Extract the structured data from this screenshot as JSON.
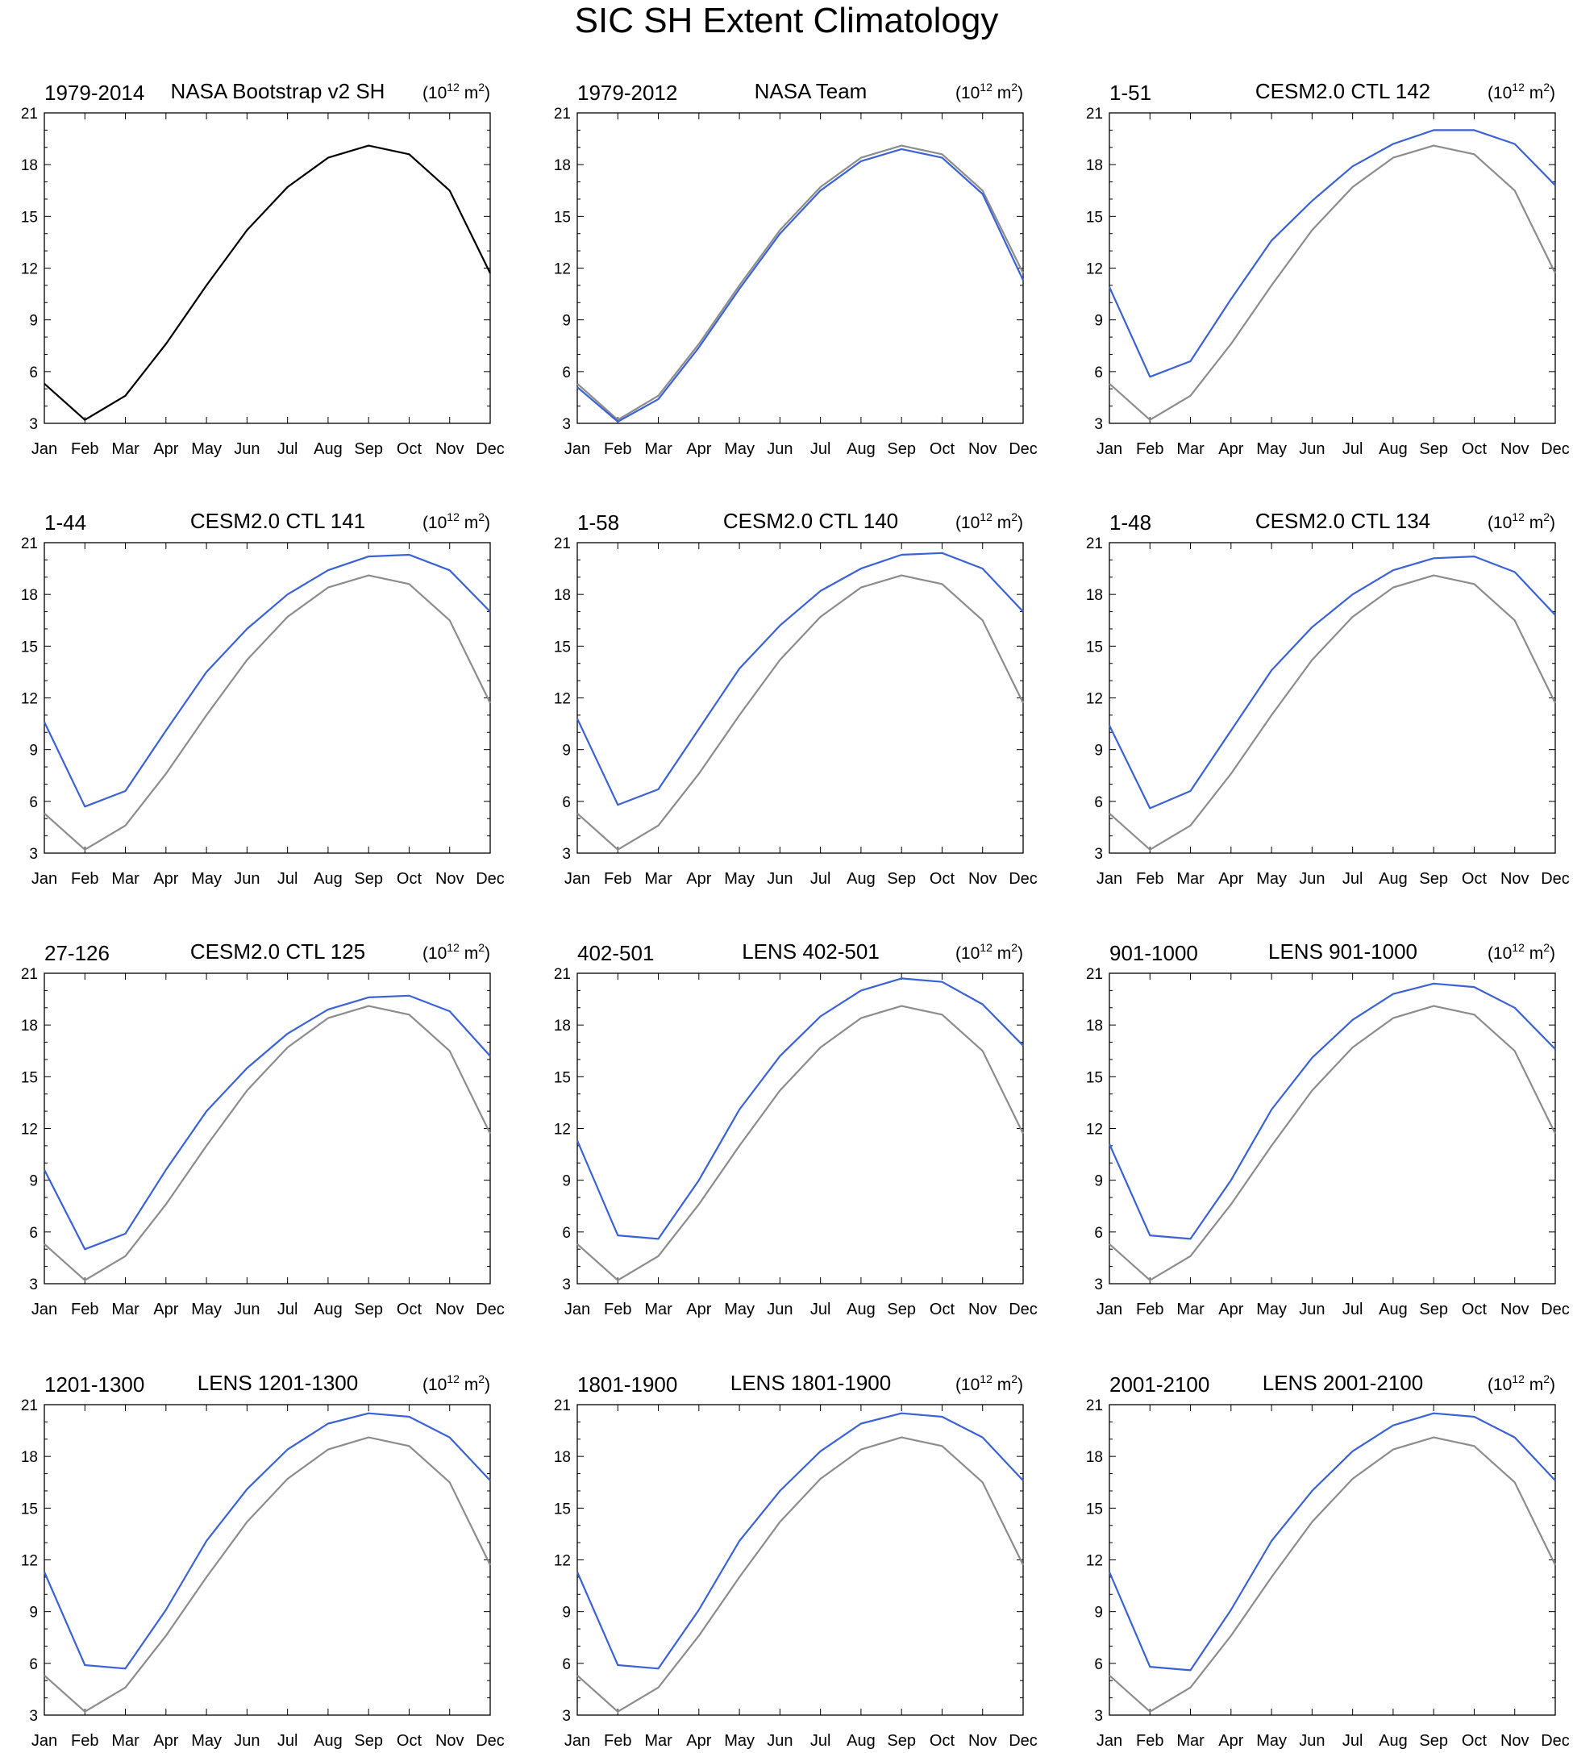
{
  "title": "SIC SH Extent Climatology",
  "unit_label": {
    "base": "(10",
    "exp": "12",
    "mid": " m",
    "exp2": "2",
    "end": ")"
  },
  "colors": {
    "observation": "#8c8c8c",
    "model": "#3a62d4",
    "reference_black": "#000000"
  },
  "chart_data": [
    {
      "type": "line",
      "left_label": "1979-2014",
      "center_label": "NASA Bootstrap v2 SH",
      "categories": [
        "Jan",
        "Feb",
        "Mar",
        "Apr",
        "May",
        "Jun",
        "Jul",
        "Aug",
        "Sep",
        "Oct",
        "Nov",
        "Dec"
      ],
      "ylim": [
        3,
        21
      ],
      "yticks": [
        3,
        6,
        9,
        12,
        15,
        18,
        21
      ],
      "series": [
        {
          "color": "#000000",
          "values": [
            5.3,
            3.2,
            4.6,
            7.6,
            11.0,
            14.2,
            16.7,
            18.4,
            19.1,
            18.6,
            16.5,
            11.7
          ]
        }
      ]
    },
    {
      "type": "line",
      "left_label": "1979-2012",
      "center_label": "NASA Team",
      "categories": [
        "Jan",
        "Feb",
        "Mar",
        "Apr",
        "May",
        "Jun",
        "Jul",
        "Aug",
        "Sep",
        "Oct",
        "Nov",
        "Dec"
      ],
      "ylim": [
        3,
        21
      ],
      "yticks": [
        3,
        6,
        9,
        12,
        15,
        18,
        21
      ],
      "series": [
        {
          "color": "#8c8c8c",
          "values": [
            5.3,
            3.2,
            4.6,
            7.6,
            11.0,
            14.2,
            16.7,
            18.4,
            19.1,
            18.6,
            16.5,
            11.7
          ]
        },
        {
          "color": "#3a62d4",
          "values": [
            5.1,
            3.1,
            4.4,
            7.4,
            10.8,
            14.0,
            16.5,
            18.2,
            18.9,
            18.4,
            16.3,
            11.3
          ]
        }
      ]
    },
    {
      "type": "line",
      "left_label": "1-51",
      "center_label": "CESM2.0 CTL 142",
      "categories": [
        "Jan",
        "Feb",
        "Mar",
        "Apr",
        "May",
        "Jun",
        "Jul",
        "Aug",
        "Sep",
        "Oct",
        "Nov",
        "Dec"
      ],
      "ylim": [
        3,
        21
      ],
      "yticks": [
        3,
        6,
        9,
        12,
        15,
        18,
        21
      ],
      "series": [
        {
          "color": "#8c8c8c",
          "values": [
            5.3,
            3.2,
            4.6,
            7.6,
            11.0,
            14.2,
            16.7,
            18.4,
            19.1,
            18.6,
            16.5,
            11.7
          ]
        },
        {
          "color": "#3a62d4",
          "values": [
            10.9,
            5.7,
            6.6,
            10.2,
            13.6,
            15.9,
            17.9,
            19.2,
            20.0,
            20.0,
            19.2,
            16.8
          ]
        }
      ]
    },
    {
      "type": "line",
      "left_label": "1-44",
      "center_label": "CESM2.0 CTL 141",
      "categories": [
        "Jan",
        "Feb",
        "Mar",
        "Apr",
        "May",
        "Jun",
        "Jul",
        "Aug",
        "Sep",
        "Oct",
        "Nov",
        "Dec"
      ],
      "ylim": [
        3,
        21
      ],
      "yticks": [
        3,
        6,
        9,
        12,
        15,
        18,
        21
      ],
      "series": [
        {
          "color": "#8c8c8c",
          "values": [
            5.3,
            3.2,
            4.6,
            7.6,
            11.0,
            14.2,
            16.7,
            18.4,
            19.1,
            18.6,
            16.5,
            11.7
          ]
        },
        {
          "color": "#3a62d4",
          "values": [
            10.6,
            5.7,
            6.6,
            10.1,
            13.5,
            16.0,
            18.0,
            19.4,
            20.2,
            20.3,
            19.4,
            17.0
          ]
        }
      ]
    },
    {
      "type": "line",
      "left_label": "1-58",
      "center_label": "CESM2.0 CTL 140",
      "categories": [
        "Jan",
        "Feb",
        "Mar",
        "Apr",
        "May",
        "Jun",
        "Jul",
        "Aug",
        "Sep",
        "Oct",
        "Nov",
        "Dec"
      ],
      "ylim": [
        3,
        21
      ],
      "yticks": [
        3,
        6,
        9,
        12,
        15,
        18,
        21
      ],
      "series": [
        {
          "color": "#8c8c8c",
          "values": [
            5.3,
            3.2,
            4.6,
            7.6,
            11.0,
            14.2,
            16.7,
            18.4,
            19.1,
            18.6,
            16.5,
            11.7
          ]
        },
        {
          "color": "#3a62d4",
          "values": [
            10.8,
            5.8,
            6.7,
            10.2,
            13.7,
            16.2,
            18.2,
            19.5,
            20.3,
            20.4,
            19.5,
            17.0
          ]
        }
      ]
    },
    {
      "type": "line",
      "left_label": "1-48",
      "center_label": "CESM2.0 CTL 134",
      "categories": [
        "Jan",
        "Feb",
        "Mar",
        "Apr",
        "May",
        "Jun",
        "Jul",
        "Aug",
        "Sep",
        "Oct",
        "Nov",
        "Dec"
      ],
      "ylim": [
        3,
        21
      ],
      "yticks": [
        3,
        6,
        9,
        12,
        15,
        18,
        21
      ],
      "series": [
        {
          "color": "#8c8c8c",
          "values": [
            5.3,
            3.2,
            4.6,
            7.6,
            11.0,
            14.2,
            16.7,
            18.4,
            19.1,
            18.6,
            16.5,
            11.7
          ]
        },
        {
          "color": "#3a62d4",
          "values": [
            10.4,
            5.6,
            6.6,
            10.1,
            13.6,
            16.1,
            18.0,
            19.4,
            20.1,
            20.2,
            19.3,
            16.8
          ]
        }
      ]
    },
    {
      "type": "line",
      "left_label": "27-126",
      "center_label": "CESM2.0 CTL 125",
      "categories": [
        "Jan",
        "Feb",
        "Mar",
        "Apr",
        "May",
        "Jun",
        "Jul",
        "Aug",
        "Sep",
        "Oct",
        "Nov",
        "Dec"
      ],
      "ylim": [
        3,
        21
      ],
      "yticks": [
        3,
        6,
        9,
        12,
        15,
        18,
        21
      ],
      "series": [
        {
          "color": "#8c8c8c",
          "values": [
            5.3,
            3.2,
            4.6,
            7.6,
            11.0,
            14.2,
            16.7,
            18.4,
            19.1,
            18.6,
            16.5,
            11.7
          ]
        },
        {
          "color": "#3a62d4",
          "values": [
            9.6,
            5.0,
            5.9,
            9.6,
            13.0,
            15.5,
            17.5,
            18.9,
            19.6,
            19.7,
            18.8,
            16.2
          ]
        }
      ]
    },
    {
      "type": "line",
      "left_label": "402-501",
      "center_label": "LENS 402-501",
      "categories": [
        "Jan",
        "Feb",
        "Mar",
        "Apr",
        "May",
        "Jun",
        "Jul",
        "Aug",
        "Sep",
        "Oct",
        "Nov",
        "Dec"
      ],
      "ylim": [
        3,
        21
      ],
      "yticks": [
        3,
        6,
        9,
        12,
        15,
        18,
        21
      ],
      "series": [
        {
          "color": "#8c8c8c",
          "values": [
            5.3,
            3.2,
            4.6,
            7.6,
            11.0,
            14.2,
            16.7,
            18.4,
            19.1,
            18.6,
            16.5,
            11.7
          ]
        },
        {
          "color": "#3a62d4",
          "values": [
            11.3,
            5.8,
            5.6,
            9.0,
            13.1,
            16.2,
            18.5,
            20.0,
            20.7,
            20.5,
            19.2,
            16.8
          ]
        }
      ]
    },
    {
      "type": "line",
      "left_label": "901-1000",
      "center_label": "LENS 901-1000",
      "categories": [
        "Jan",
        "Feb",
        "Mar",
        "Apr",
        "May",
        "Jun",
        "Jul",
        "Aug",
        "Sep",
        "Oct",
        "Nov",
        "Dec"
      ],
      "ylim": [
        3,
        21
      ],
      "yticks": [
        3,
        6,
        9,
        12,
        15,
        18,
        21
      ],
      "series": [
        {
          "color": "#8c8c8c",
          "values": [
            5.3,
            3.2,
            4.6,
            7.6,
            11.0,
            14.2,
            16.7,
            18.4,
            19.1,
            18.6,
            16.5,
            11.7
          ]
        },
        {
          "color": "#3a62d4",
          "values": [
            11.1,
            5.8,
            5.6,
            9.0,
            13.1,
            16.1,
            18.3,
            19.8,
            20.4,
            20.2,
            19.0,
            16.6
          ]
        }
      ]
    },
    {
      "type": "line",
      "left_label": "1201-1300",
      "center_label": "LENS 1201-1300",
      "categories": [
        "Jan",
        "Feb",
        "Mar",
        "Apr",
        "May",
        "Jun",
        "Jul",
        "Aug",
        "Sep",
        "Oct",
        "Nov",
        "Dec"
      ],
      "ylim": [
        3,
        21
      ],
      "yticks": [
        3,
        6,
        9,
        12,
        15,
        18,
        21
      ],
      "series": [
        {
          "color": "#8c8c8c",
          "values": [
            5.3,
            3.2,
            4.6,
            7.6,
            11.0,
            14.2,
            16.7,
            18.4,
            19.1,
            18.6,
            16.5,
            11.7
          ]
        },
        {
          "color": "#3a62d4",
          "values": [
            11.3,
            5.9,
            5.7,
            9.1,
            13.1,
            16.1,
            18.4,
            19.9,
            20.5,
            20.3,
            19.1,
            16.6
          ]
        }
      ]
    },
    {
      "type": "line",
      "left_label": "1801-1900",
      "center_label": "LENS 1801-1900",
      "categories": [
        "Jan",
        "Feb",
        "Mar",
        "Apr",
        "May",
        "Jun",
        "Jul",
        "Aug",
        "Sep",
        "Oct",
        "Nov",
        "Dec"
      ],
      "ylim": [
        3,
        21
      ],
      "yticks": [
        3,
        6,
        9,
        12,
        15,
        18,
        21
      ],
      "series": [
        {
          "color": "#8c8c8c",
          "values": [
            5.3,
            3.2,
            4.6,
            7.6,
            11.0,
            14.2,
            16.7,
            18.4,
            19.1,
            18.6,
            16.5,
            11.7
          ]
        },
        {
          "color": "#3a62d4",
          "values": [
            11.3,
            5.9,
            5.7,
            9.1,
            13.1,
            16.0,
            18.3,
            19.9,
            20.5,
            20.3,
            19.1,
            16.6
          ]
        }
      ]
    },
    {
      "type": "line",
      "left_label": "2001-2100",
      "center_label": "LENS 2001-2100",
      "categories": [
        "Jan",
        "Feb",
        "Mar",
        "Apr",
        "May",
        "Jun",
        "Jul",
        "Aug",
        "Sep",
        "Oct",
        "Nov",
        "Dec"
      ],
      "ylim": [
        3,
        21
      ],
      "yticks": [
        3,
        6,
        9,
        12,
        15,
        18,
        21
      ],
      "series": [
        {
          "color": "#8c8c8c",
          "values": [
            5.3,
            3.2,
            4.6,
            7.6,
            11.0,
            14.2,
            16.7,
            18.4,
            19.1,
            18.6,
            16.5,
            11.7
          ]
        },
        {
          "color": "#3a62d4",
          "values": [
            11.3,
            5.8,
            5.6,
            9.1,
            13.1,
            16.0,
            18.3,
            19.8,
            20.5,
            20.3,
            19.1,
            16.6
          ]
        }
      ]
    }
  ]
}
